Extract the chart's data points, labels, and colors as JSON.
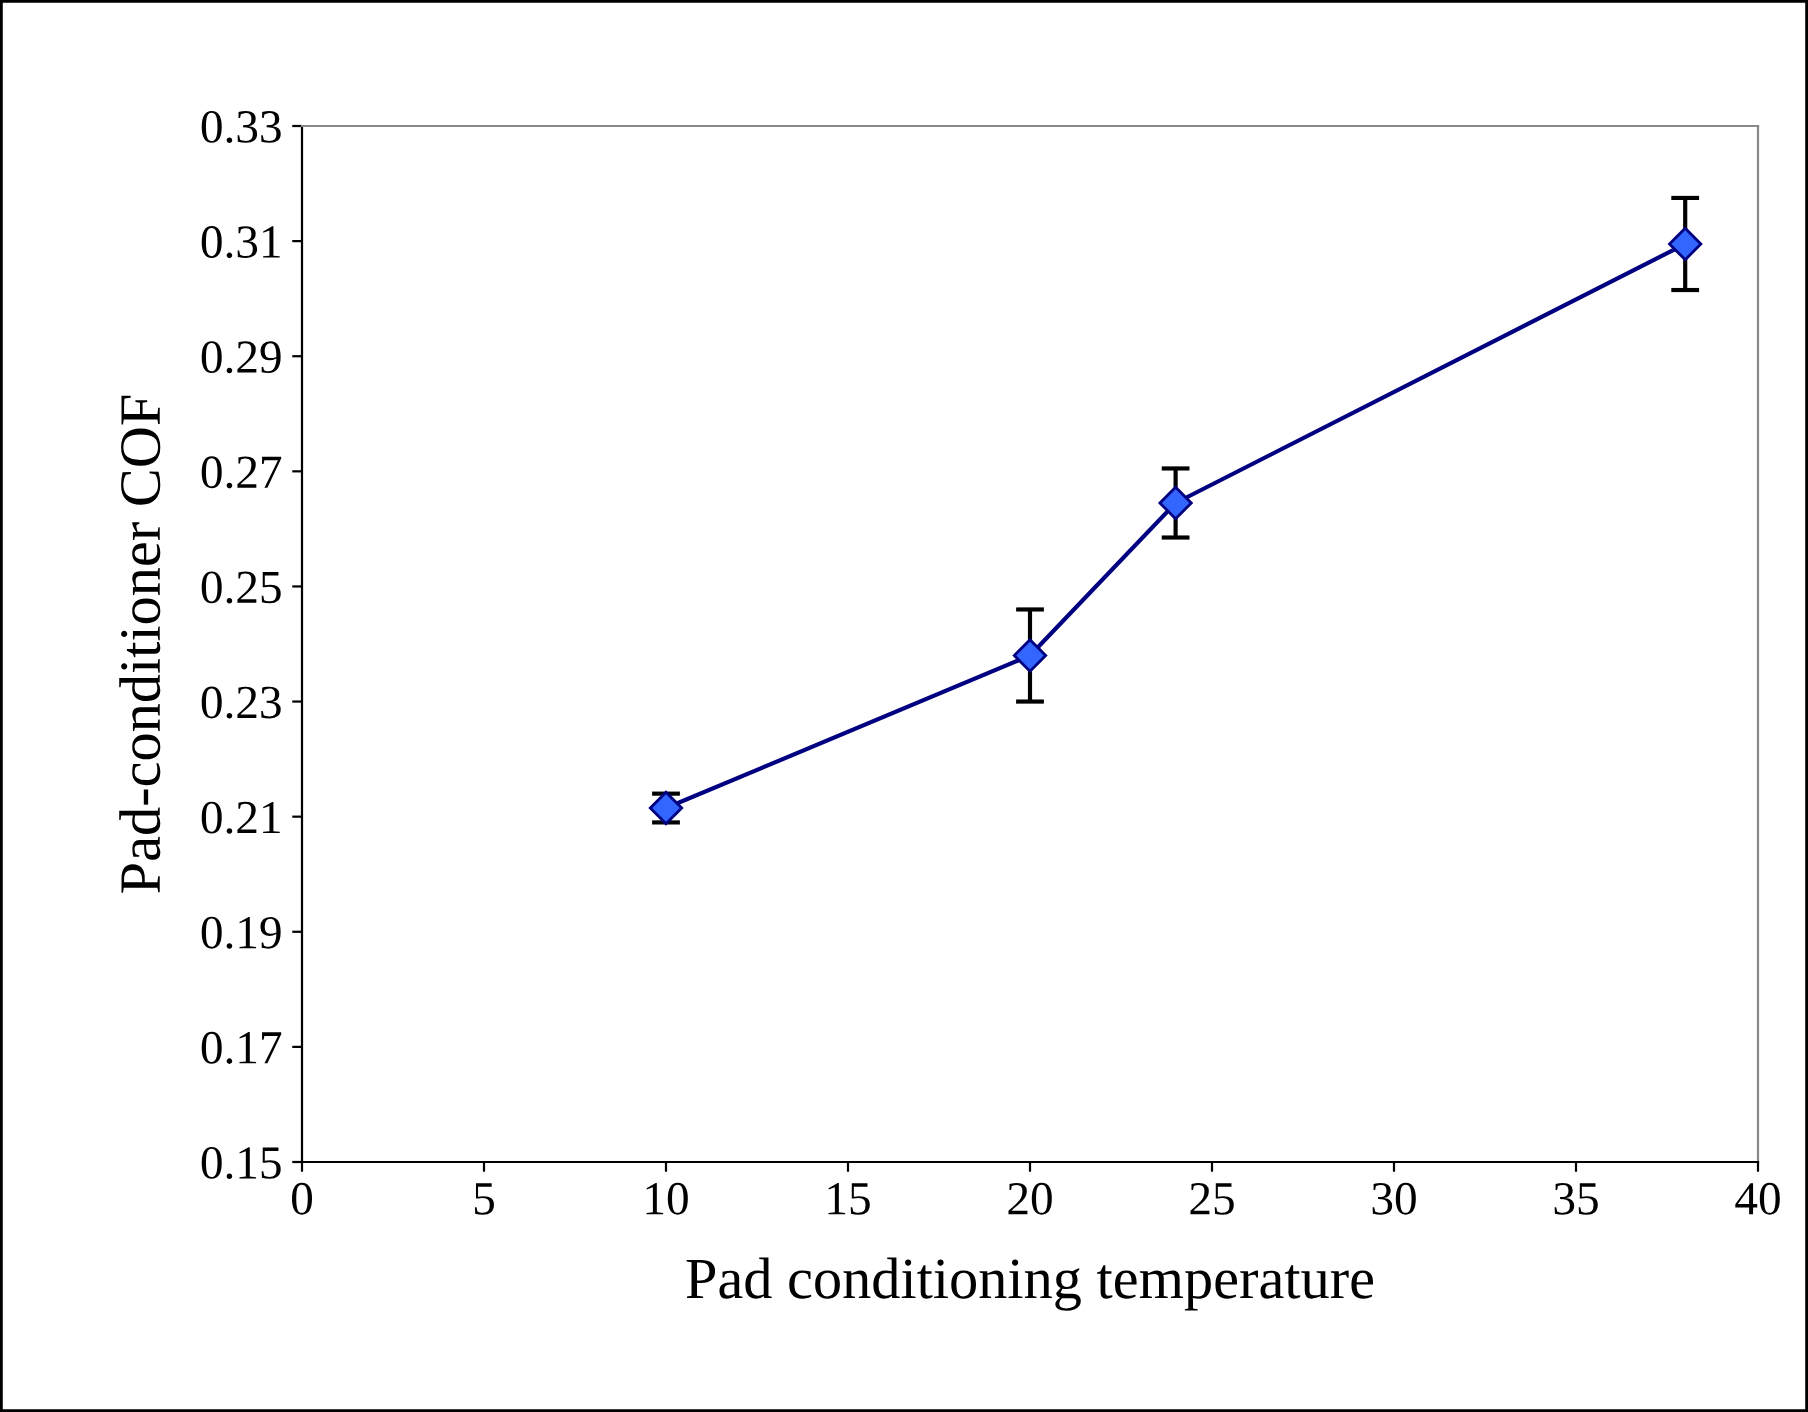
{
  "chart_data": {
    "type": "line",
    "xlabel": "Pad conditioning temperature",
    "ylabel": "Pad-conditioner COF",
    "x": [
      10,
      20,
      24,
      38
    ],
    "series": [
      {
        "color": "#000080",
        "values": [
          0.2115,
          0.238,
          0.2645,
          0.3095
        ],
        "errors": [
          0.0025,
          0.008,
          0.006,
          0.008
        ]
      }
    ],
    "xlim": [
      0,
      40
    ],
    "xticks": [
      0,
      5,
      10,
      15,
      20,
      25,
      30,
      35,
      40
    ],
    "ylim": [
      0.15,
      0.33
    ],
    "yticks": [
      {
        "value": 0.15,
        "label": "0.15"
      },
      {
        "value": 0.17,
        "label": "0.17"
      },
      {
        "value": 0.19,
        "label": "0.19"
      },
      {
        "value": 0.21,
        "label": "0.21"
      },
      {
        "value": 0.23,
        "label": "0.23"
      },
      {
        "value": 0.25,
        "label": "0.25"
      },
      {
        "value": 0.27,
        "label": "0.27"
      },
      {
        "value": 0.29,
        "label": "0.29"
      },
      {
        "value": 0.31,
        "label": "0.31"
      },
      {
        "value": 0.33,
        "label": "0.33"
      }
    ],
    "marker": "diamond",
    "line_style": "solid",
    "grid": false,
    "legend": false
  }
}
